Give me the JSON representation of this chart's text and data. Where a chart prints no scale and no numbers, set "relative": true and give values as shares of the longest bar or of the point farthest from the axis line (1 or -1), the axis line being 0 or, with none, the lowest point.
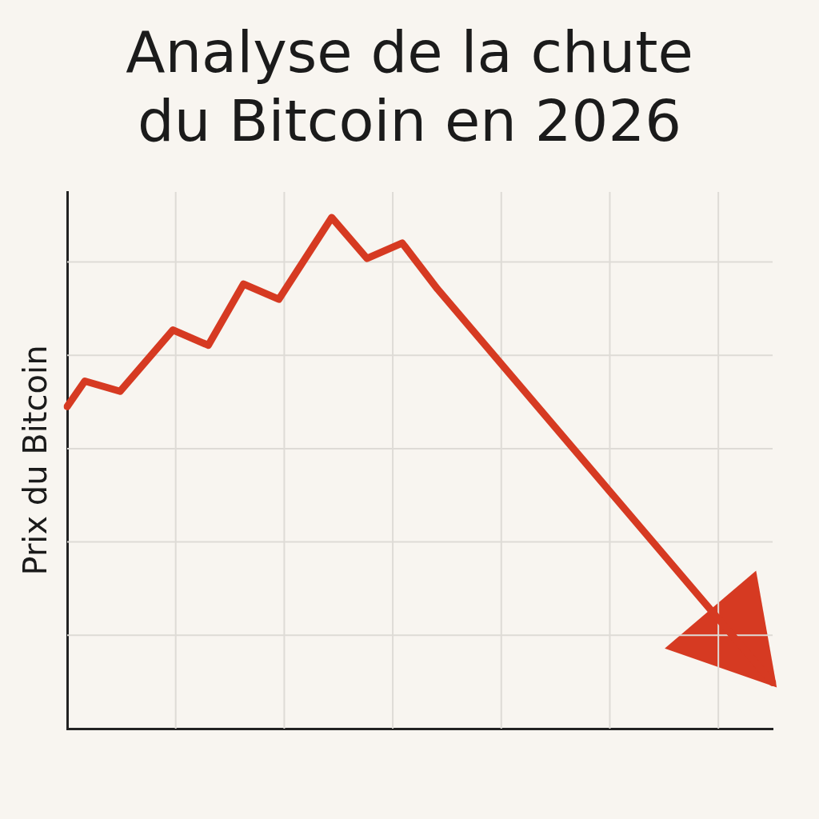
{
  "chart_data": {
    "type": "line",
    "title": "Analyse de la chute\ndu Bitcoin en 2026",
    "ylabel": "Prix du Bitcoin",
    "relative": true,
    "grid": true,
    "legend": false,
    "marker": "none",
    "line_style": "solid",
    "categories": [
      null,
      null,
      null,
      null,
      null,
      null,
      null,
      null,
      null,
      null,
      null,
      null,
      null,
      null,
      null,
      null,
      null,
      null,
      null,
      null,
      null,
      null,
      null,
      null,
      null,
      null,
      null,
      null,
      null,
      null,
      null,
      null,
      null,
      null,
      null,
      null,
      null,
      null,
      null,
      null,
      null
    ],
    "series": [
      {
        "color": "#d63a22",
        "values": [
          0.63,
          0.68,
          null,
          0.66,
          null,
          null,
          0.78,
          null,
          0.75,
          null,
          0.87,
          null,
          0.84,
          null,
          null,
          1.0,
          null,
          0.92,
          null,
          0.95,
          null,
          0.86,
          null,
          null,
          null,
          null,
          null,
          null,
          null,
          null,
          null,
          null,
          null,
          null,
          null,
          null,
          null,
          null,
          null,
          null,
          0.09
        ]
      }
    ]
  }
}
